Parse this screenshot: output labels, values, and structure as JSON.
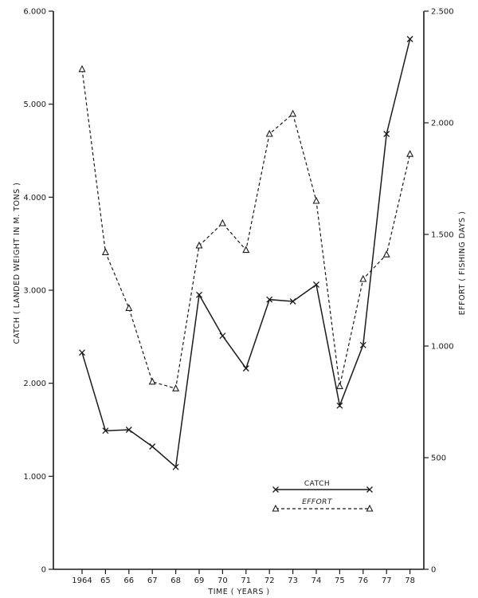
{
  "chart_data": {
    "type": "line",
    "x": [
      "1964",
      "65",
      "66",
      "67",
      "68",
      "69",
      "70",
      "71",
      "72",
      "73",
      "74",
      "75",
      "76",
      "77",
      "78"
    ],
    "xlabel": "TIME ( YEARS )",
    "y_left": {
      "label": "CATCH ( LANDED WEIGHT IN M. TONS )",
      "lim": [
        0,
        6000
      ],
      "ticks": [
        0,
        1000,
        2000,
        3000,
        4000,
        5000,
        6000
      ],
      "tick_labels": [
        "0",
        "1.000",
        "2.000",
        "3.000",
        "4.000",
        "5.000",
        "6.000"
      ]
    },
    "y_right": {
      "label": "EFFORT ( FISHING DAYS )",
      "lim": [
        0,
        2500
      ],
      "ticks": [
        0,
        500,
        1000,
        1500,
        2000,
        2500
      ],
      "tick_labels": [
        "0",
        "500",
        "1.000",
        "1.500",
        "2.000",
        "2.500"
      ]
    },
    "series": [
      {
        "name": "CATCH",
        "axis": "left",
        "marker": "x",
        "line": "solid",
        "values": [
          2330,
          1490,
          1500,
          1320,
          1100,
          2950,
          2510,
          2160,
          2900,
          2880,
          3060,
          1760,
          2410,
          4680,
          5700
        ]
      },
      {
        "name": "EFFORT",
        "axis": "right",
        "marker": "triangle",
        "line": "dashed",
        "values": [
          2240,
          1420,
          1170,
          840,
          810,
          1450,
          1550,
          1430,
          1950,
          2040,
          1650,
          820,
          1300,
          1410,
          1860
        ]
      }
    ],
    "legend": {
      "placement": "bottom-center"
    }
  }
}
